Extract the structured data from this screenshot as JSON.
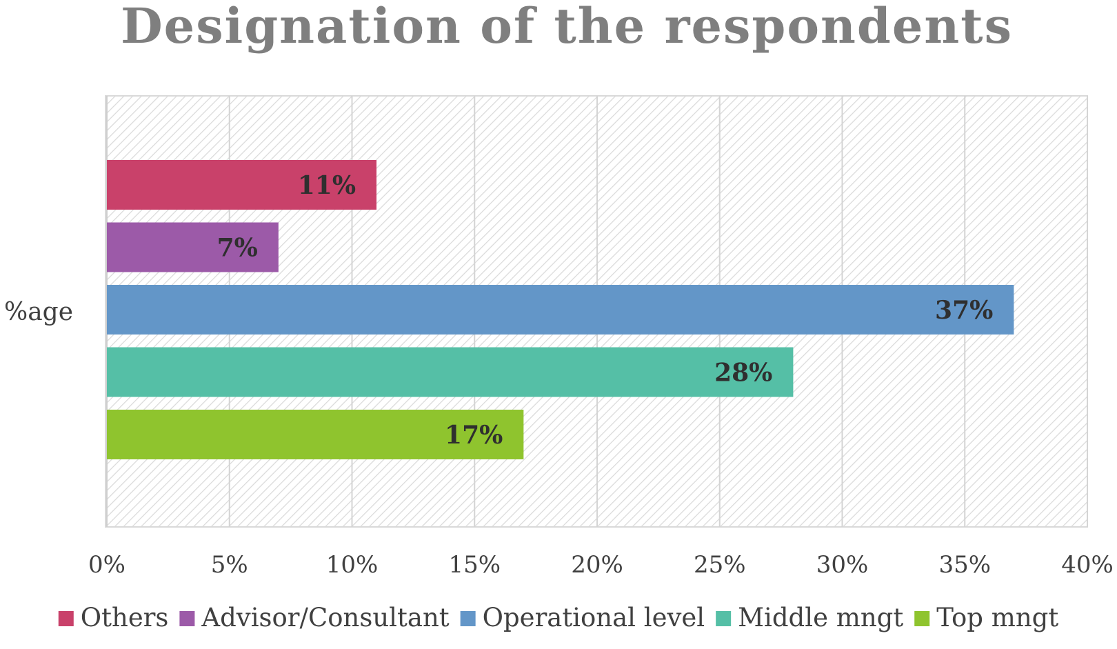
{
  "chart_data": {
    "type": "bar",
    "orientation": "horizontal",
    "title": "Designation of the respondents",
    "category_label": "%age",
    "xlim": [
      0,
      40
    ],
    "x_ticks": [
      "0%",
      "5%",
      "10%",
      "15%",
      "20%",
      "25%",
      "30%",
      "35%",
      "40%"
    ],
    "x_tick_values": [
      0,
      5,
      10,
      15,
      20,
      25,
      30,
      35,
      40
    ],
    "grid": true,
    "legend_position": "bottom",
    "series": [
      {
        "name": "Others",
        "value": 11,
        "label": "11%",
        "color": "#c9416a"
      },
      {
        "name": "Advisor/Consultant",
        "value": 7,
        "label": "7%",
        "color": "#9c5aa8"
      },
      {
        "name": "Operational level",
        "value": 37,
        "label": "37%",
        "color": "#6396c8"
      },
      {
        "name": "Middle mngt",
        "value": 28,
        "label": "28%",
        "color": "#55bfa6"
      },
      {
        "name": "Top mngt",
        "value": 17,
        "label": "17%",
        "color": "#8fc42e"
      }
    ]
  }
}
